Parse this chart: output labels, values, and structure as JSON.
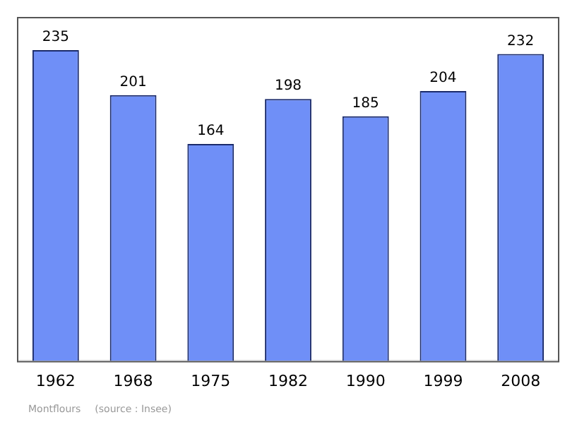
{
  "chart_data": {
    "type": "bar",
    "categories": [
      "1962",
      "1968",
      "1975",
      "1982",
      "1990",
      "1999",
      "2008"
    ],
    "values": [
      235,
      201,
      164,
      198,
      185,
      204,
      232
    ],
    "color": "#6f8ff7",
    "data_labels": true,
    "ylim": [
      0,
      260
    ],
    "grid": false,
    "legend": false,
    "annotations": [
      "Montflours",
      "(source : Insee)"
    ]
  }
}
